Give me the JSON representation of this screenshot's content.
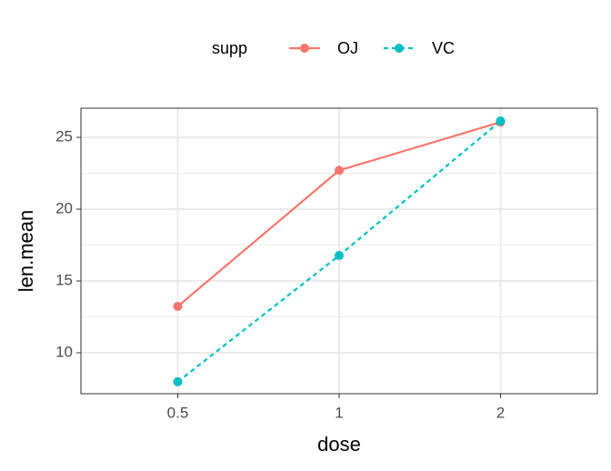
{
  "chart_data": {
    "type": "line",
    "x_label": "dose",
    "y_label": "len.mean",
    "legend_title": "supp",
    "legend_position": "top",
    "categories": [
      "0.5",
      "1",
      "2"
    ],
    "series": [
      {
        "name": "OJ",
        "color": "#F8766D",
        "dash": "solid",
        "values": [
          13.23,
          22.7,
          26.06
        ]
      },
      {
        "name": "VC",
        "color": "#00BFC4",
        "dash": "dashed",
        "values": [
          7.98,
          16.77,
          26.14
        ]
      }
    ],
    "ylim": [
      7.15,
      27.03
    ],
    "yticks": [
      10,
      15,
      20,
      25
    ],
    "minor_yticks": [
      12.5,
      17.5,
      22.5
    ],
    "grid": true
  }
}
